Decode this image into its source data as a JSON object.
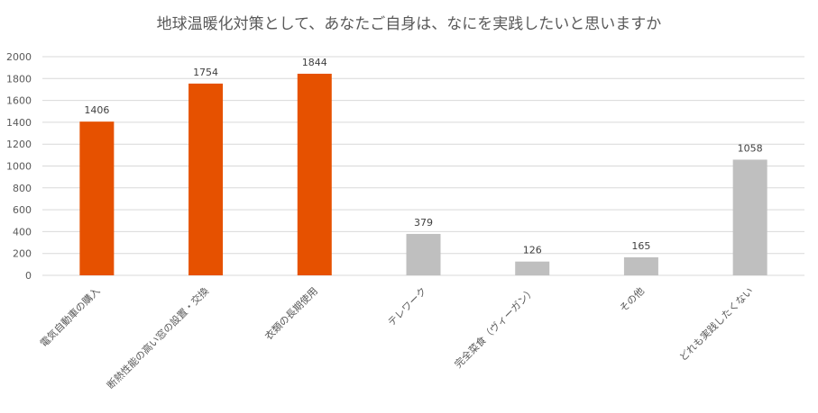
{
  "chart_data": {
    "type": "bar",
    "title": "地球温暖化対策として、あなたご自身は、なにを実践したいと思いますか",
    "categories": [
      "電気自動車の購入",
      "断熱性能の高い窓の設置・交換",
      "衣類の長期使用",
      "テレワーク",
      "完全菜食（ヴィーガン）",
      "その他",
      "どれも実践したくない"
    ],
    "values": [
      1406,
      1754,
      1844,
      379,
      126,
      165,
      1058
    ],
    "ylim": [
      0,
      2000
    ],
    "yticks": [
      0,
      200,
      400,
      600,
      800,
      1000,
      1200,
      1400,
      1600,
      1800,
      2000
    ],
    "grid": true,
    "legend": "none",
    "colors": {
      "highlight": "#E65100",
      "normal": "#BFBFBF",
      "grid": "#D9D9D9",
      "axis_text": "#595959",
      "label_text": "#404040"
    },
    "highlight_indices": [
      0,
      1,
      2
    ]
  }
}
